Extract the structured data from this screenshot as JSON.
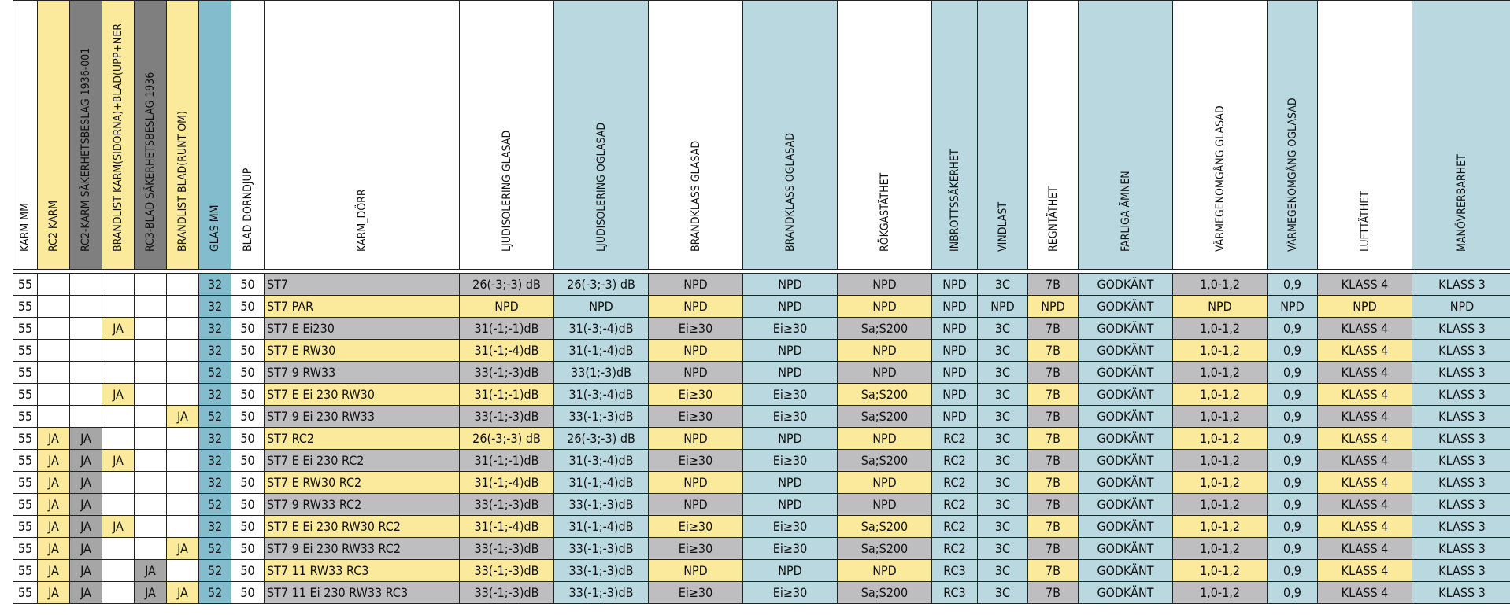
{
  "headers": [
    "KARM MM",
    "RC2 KARM",
    "RC2-KARM SÄKERHETSBESLAG 1936-001",
    "BRANDLIST KARM(SIDORNA)+BLAD(UPP+NER",
    "RC3-BLAD SÄKERHETSBESLAG 1936",
    "BRANDLIST BLAD(RUNT OM)",
    "GLAS MM",
    "BLAD DORNDJUP",
    "KARM_DÖRR",
    "LJUDISOLERING GLASAD",
    "LJUDISOLERING OGLASAD",
    "BRANDKLASS GLASAD",
    "BRANDKLASS OGLASAD",
    "RÖKGASTÄTHET",
    "INBROTTSSÄKERHET",
    "VINDLAST",
    "REGNTÄTHET",
    "FARLIGA ÄMNEN",
    "VÄRMEGENOMGÅNG GLASAD",
    "VÄRMEGENOMGÅNG OGLASAD",
    "LUFTTÄTHET",
    "MANÖVRERBARHET"
  ],
  "rows": [
    {
      "karm": "55",
      "rc2": "",
      "rc2b": "",
      "bl": "",
      "rc3": "",
      "blr": "",
      "glas": "32",
      "dorn": "50",
      "name": "ST7",
      "lg": "26(-3;-3) dB",
      "lo": "26(-3;-3) dB",
      "bg": "NPD",
      "bo": "NPD",
      "rok": "NPD",
      "inb": "NPD",
      "vind": "3C",
      "regn": "7B",
      "far": "GODKÄNT",
      "vg": "1,0-1,2",
      "vo": "0,9",
      "luft": "KLASS 4",
      "man": "KLASS 3"
    },
    {
      "karm": "55",
      "rc2": "",
      "rc2b": "",
      "bl": "",
      "rc3": "",
      "blr": "",
      "glas": "32",
      "dorn": "50",
      "name": "ST7 PAR",
      "lg": "NPD",
      "lo": "NPD",
      "bg": "NPD",
      "bo": "NPD",
      "rok": "NPD",
      "inb": "NPD",
      "vind": "NPD",
      "regn": "NPD",
      "far": "GODKÄNT",
      "vg": "NPD",
      "vo": "NPD",
      "luft": "NPD",
      "man": "NPD"
    },
    {
      "karm": "55",
      "rc2": "",
      "rc2b": "",
      "bl": "JA",
      "rc3": "",
      "blr": "",
      "glas": "32",
      "dorn": "50",
      "name": "ST7 E Ei230",
      "lg": "31(-1;-1)dB",
      "lo": "31(-3;-4)dB",
      "bg": "Ei≥30",
      "bo": "Ei≥30",
      "rok": "Sa;S200",
      "inb": "NPD",
      "vind": "3C",
      "regn": "7B",
      "far": "GODKÄNT",
      "vg": "1,0-1,2",
      "vo": "0,9",
      "luft": "KLASS 4",
      "man": "KLASS 3"
    },
    {
      "karm": "55",
      "rc2": "",
      "rc2b": "",
      "bl": "",
      "rc3": "",
      "blr": "",
      "glas": "32",
      "dorn": "50",
      "name": "ST7 E RW30",
      "lg": "31(-1;-4)dB",
      "lo": "31(-1;-4)dB",
      "bg": "NPD",
      "bo": "NPD",
      "rok": "NPD",
      "inb": "NPD",
      "vind": "3C",
      "regn": "7B",
      "far": "GODKÄNT",
      "vg": "1,0-1,2",
      "vo": "0,9",
      "luft": "KLASS 4",
      "man": "KLASS 3"
    },
    {
      "karm": "55",
      "rc2": "",
      "rc2b": "",
      "bl": "",
      "rc3": "",
      "blr": "",
      "glas": "52",
      "dorn": "50",
      "name": "ST7 9 RW33",
      "lg": "33(-1;-3)dB",
      "lo": "33(1;-3)dB",
      "bg": "NPD",
      "bo": "NPD",
      "rok": "NPD",
      "inb": "NPD",
      "vind": "3C",
      "regn": "7B",
      "far": "GODKÄNT",
      "vg": "1,0-1,2",
      "vo": "0,9",
      "luft": "KLASS 4",
      "man": "KLASS 3"
    },
    {
      "karm": "55",
      "rc2": "",
      "rc2b": "",
      "bl": "JA",
      "rc3": "",
      "blr": "",
      "glas": "32",
      "dorn": "50",
      "name": "ST7 E Ei 230 RW30",
      "lg": "31(-1;-1)dB",
      "lo": "31(-3;-4)dB",
      "bg": "Ei≥30",
      "bo": "Ei≥30",
      "rok": "Sa;S200",
      "inb": "NPD",
      "vind": "3C",
      "regn": "7B",
      "far": "GODKÄNT",
      "vg": "1,0-1,2",
      "vo": "0,9",
      "luft": "KLASS 4",
      "man": "KLASS 3"
    },
    {
      "karm": "55",
      "rc2": "",
      "rc2b": "",
      "bl": "",
      "rc3": "",
      "blr": "JA",
      "glas": "52",
      "dorn": "50",
      "name": "ST7 9 Ei 230 RW33",
      "lg": "33(-1;-3)dB",
      "lo": "33(-1;-3)dB",
      "bg": "Ei≥30",
      "bo": "Ei≥30",
      "rok": "Sa;S200",
      "inb": "NPD",
      "vind": "3C",
      "regn": "7B",
      "far": "GODKÄNT",
      "vg": "1,0-1,2",
      "vo": "0,9",
      "luft": "KLASS 4",
      "man": "KLASS 3"
    },
    {
      "karm": "55",
      "rc2": "JA",
      "rc2b": "JA",
      "bl": "",
      "rc3": "",
      "blr": "",
      "glas": "32",
      "dorn": "50",
      "name": "ST7 RC2",
      "lg": "26(-3;-3) dB",
      "lo": "26(-3;-3) dB",
      "bg": "NPD",
      "bo": "NPD",
      "rok": "NPD",
      "inb": "RC2",
      "vind": "3C",
      "regn": "7B",
      "far": "GODKÄNT",
      "vg": "1,0-1,2",
      "vo": "0,9",
      "luft": "KLASS 4",
      "man": "KLASS 3"
    },
    {
      "karm": "55",
      "rc2": "JA",
      "rc2b": "JA",
      "bl": "JA",
      "rc3": "",
      "blr": "",
      "glas": "32",
      "dorn": "50",
      "name": "ST7 E Ei 230 RC2",
      "lg": "31(-1;-1)dB",
      "lo": "31(-3;-4)dB",
      "bg": "Ei≥30",
      "bo": "Ei≥30",
      "rok": "Sa;S200",
      "inb": "RC2",
      "vind": "3C",
      "regn": "7B",
      "far": "GODKÄNT",
      "vg": "1,0-1,2",
      "vo": "0,9",
      "luft": "KLASS 4",
      "man": "KLASS 3"
    },
    {
      "karm": "55",
      "rc2": "JA",
      "rc2b": "JA",
      "bl": "",
      "rc3": "",
      "blr": "",
      "glas": "32",
      "dorn": "50",
      "name": "ST7 E RW30 RC2",
      "lg": "31(-1;-4)dB",
      "lo": "31(-1;-4)dB",
      "bg": "NPD",
      "bo": "NPD",
      "rok": "NPD",
      "inb": "RC2",
      "vind": "3C",
      "regn": "7B",
      "far": "GODKÄNT",
      "vg": "1,0-1,2",
      "vo": "0,9",
      "luft": "KLASS 4",
      "man": "KLASS 3"
    },
    {
      "karm": "55",
      "rc2": "JA",
      "rc2b": "JA",
      "bl": "",
      "rc3": "",
      "blr": "",
      "glas": "52",
      "dorn": "50",
      "name": "ST7 9 RW33 RC2",
      "lg": "33(-1;-3)dB",
      "lo": "33(-1;-3)dB",
      "bg": "NPD",
      "bo": "NPD",
      "rok": "NPD",
      "inb": "RC2",
      "vind": "3C",
      "regn": "7B",
      "far": "GODKÄNT",
      "vg": "1,0-1,2",
      "vo": "0,9",
      "luft": "KLASS 4",
      "man": "KLASS 3"
    },
    {
      "karm": "55",
      "rc2": "JA",
      "rc2b": "JA",
      "bl": "JA",
      "rc3": "",
      "blr": "",
      "glas": "32",
      "dorn": "50",
      "name": "ST7 E Ei 230 RW30 RC2",
      "lg": "31(-1;-4)dB",
      "lo": "31(-1;-4)dB",
      "bg": "Ei≥30",
      "bo": "Ei≥30",
      "rok": "Sa;S200",
      "inb": "RC2",
      "vind": "3C",
      "regn": "7B",
      "far": "GODKÄNT",
      "vg": "1,0-1,2",
      "vo": "0,9",
      "luft": "KLASS 4",
      "man": "KLASS 3"
    },
    {
      "karm": "55",
      "rc2": "JA",
      "rc2b": "JA",
      "bl": "",
      "rc3": "",
      "blr": "JA",
      "glas": "52",
      "dorn": "50",
      "name": "ST7 9 Ei 230 RW33 RC2",
      "lg": "33(-1;-3)dB",
      "lo": "33(-1;-3)dB",
      "bg": "Ei≥30",
      "bo": "Ei≥30",
      "rok": "Sa;S200",
      "inb": "RC2",
      "vind": "3C",
      "regn": "7B",
      "far": "GODKÄNT",
      "vg": "1,0-1,2",
      "vo": "0,9",
      "luft": "KLASS 4",
      "man": "KLASS 3"
    },
    {
      "karm": "55",
      "rc2": "JA",
      "rc2b": "JA",
      "bl": "",
      "rc3": "JA",
      "blr": "",
      "glas": "52",
      "dorn": "50",
      "name": "ST7 11 RW33 RC3",
      "lg": "33(-1;-3)dB",
      "lo": "33(-1;-3)dB",
      "bg": "NPD",
      "bo": "NPD",
      "rok": "NPD",
      "inb": "RC3",
      "vind": "3C",
      "regn": "7B",
      "far": "GODKÄNT",
      "vg": "1,0-1,2",
      "vo": "0,9",
      "luft": "KLASS 4",
      "man": "KLASS 3"
    },
    {
      "karm": "55",
      "rc2": "JA",
      "rc2b": "JA",
      "bl": "",
      "rc3": "JA",
      "blr": "JA",
      "glas": "52",
      "dorn": "50",
      "name": "ST7 11 Ei 230 RW33 RC3",
      "lg": "33(-1;-3)dB",
      "lo": "33(-1;-3)dB",
      "bg": "Ei≥30",
      "bo": "Ei≥30",
      "rok": "Sa;S200",
      "inb": "RC3",
      "vind": "3C",
      "regn": "7B",
      "far": "GODKÄNT",
      "vg": "1,0-1,2",
      "vo": "0,9",
      "luft": "KLASS 4",
      "man": "KLASS 3"
    }
  ],
  "row_styles": [
    "gray",
    "yellow",
    "gray",
    "yellow",
    "gray",
    "yellow",
    "gray",
    "yellow",
    "gray",
    "yellow",
    "gray",
    "yellow",
    "gray",
    "yellow",
    "gray"
  ],
  "colors": {
    "yellow": "#fcea9c",
    "gray": "#bebdbf",
    "dark_gray": "#7f7f80",
    "teal": "#82bccd",
    "light_blue": "#b9d8e0"
  }
}
